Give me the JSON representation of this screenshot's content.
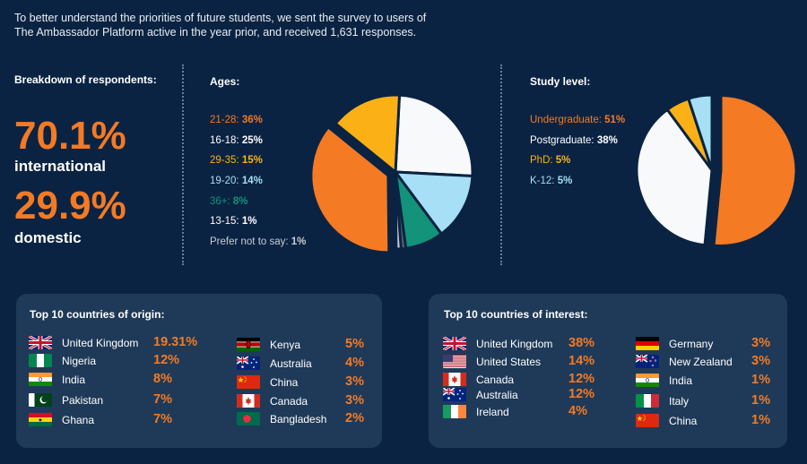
{
  "intro": {
    "line1": "To better understand the priorities of future students, we sent the survey to users of",
    "line2": "The Ambassador Platform active in the year prior, and received 1,631 responses."
  },
  "breakdown": {
    "title": "Breakdown of respondents:",
    "international_value": "70.1%",
    "international_label": "international",
    "domestic_value": "29.9%",
    "domestic_label": "domestic"
  },
  "colors": {
    "background": "#0b2342",
    "panel": "#1f3a58",
    "accent_orange": "#f47a24"
  },
  "chart_data": [
    {
      "type": "pie",
      "title": "Ages:",
      "slices": [
        {
          "label": "21-28",
          "display": "21-28: ",
          "value_text": "36%",
          "value": 36,
          "color": "#f47a24"
        },
        {
          "label": "16-18",
          "display": "16-18: ",
          "value_text": "25%",
          "value": 25,
          "color": "#f8f9fb"
        },
        {
          "label": "29-35",
          "display": "29-35: ",
          "value_text": "15%",
          "value": 15,
          "color": "#fbb116"
        },
        {
          "label": "19-20",
          "display": "19-20: ",
          "value_text": "14%",
          "value": 14,
          "color": "#a6dff6"
        },
        {
          "label": "36+",
          "display": "36+: ",
          "value_text": "8%",
          "value": 8,
          "color": "#13937a"
        },
        {
          "label": "13-15",
          "display": "13-15: ",
          "value_text": "1%",
          "value": 1,
          "color": "#c9ccd2"
        },
        {
          "label": "Prefer not to say",
          "display": "Prefer not to say: ",
          "value_text": "1%",
          "value": 1,
          "color": "#5a6472"
        }
      ],
      "pie_order": [
        "16-18",
        "19-20",
        "36+",
        "Prefer not to say",
        "13-15",
        "21-28",
        "29-35"
      ],
      "exploded": "21-28"
    },
    {
      "type": "pie",
      "title": "Study level:",
      "slices": [
        {
          "label": "Undergraduate",
          "display": "Undergraduate: ",
          "value_text": "51%",
          "value": 51,
          "color": "#f47a24"
        },
        {
          "label": "Postgraduate",
          "display": "Postgraduate: ",
          "value_text": "38%",
          "value": 38,
          "color": "#f8f9fb"
        },
        {
          "label": "PhD",
          "display": "PhD: ",
          "value_text": "5%",
          "value": 5,
          "color": "#fbb116"
        },
        {
          "label": "K-12",
          "display": "K-12: ",
          "value_text": "5%",
          "value": 5,
          "color": "#a6dff6"
        }
      ],
      "pie_order": [
        "Undergraduate",
        "Postgraduate",
        "PhD",
        "K-12"
      ],
      "exploded": "Undergraduate"
    }
  ],
  "origin": {
    "title": "Top 10 countries of origin:",
    "col1": [
      {
        "name": "United Kingdom",
        "value": "19.31%",
        "flag": "uk-flag-icon"
      },
      {
        "name": "Nigeria",
        "value": "12%",
        "flag": "nigeria-flag-icon"
      },
      {
        "name": "India",
        "value": "8%",
        "flag": "india-flag-icon"
      },
      {
        "name": "Pakistan",
        "value": "7%",
        "flag": "pakistan-flag-icon"
      },
      {
        "name": "Ghana",
        "value": "7%",
        "flag": "ghana-flag-icon"
      }
    ],
    "col2": [
      {
        "name": "Kenya",
        "value": "5%",
        "flag": "kenya-flag-icon"
      },
      {
        "name": "Australia",
        "value": "4%",
        "flag": "australia-flag-icon"
      },
      {
        "name": "China",
        "value": "3%",
        "flag": "china-flag-icon"
      },
      {
        "name": "Canada",
        "value": "3%",
        "flag": "canada-flag-icon"
      },
      {
        "name": "Bangladesh",
        "value": "2%",
        "flag": "bangladesh-flag-icon"
      }
    ]
  },
  "interest": {
    "title": "Top 10 countries of interest:",
    "col1": [
      {
        "name": "United Kingdom",
        "value": "38%",
        "flag": "uk-flag-icon"
      },
      {
        "name": "United States",
        "value": "14%",
        "flag": "usa-flag-icon"
      },
      {
        "name": "Canada",
        "value": "12%",
        "flag": "canada-flag-icon"
      },
      {
        "name": "Australia",
        "value": "12%",
        "flag": "australia-flag-icon"
      },
      {
        "name": "Ireland",
        "value": "4%",
        "flag": "ireland-flag-icon"
      }
    ],
    "col2": [
      {
        "name": "Germany",
        "value": "3%",
        "flag": "germany-flag-icon"
      },
      {
        "name": "New Zealand",
        "value": "3%",
        "flag": "new-zealand-flag-icon"
      },
      {
        "name": "India",
        "value": "1%",
        "flag": "india-flag-icon"
      },
      {
        "name": "Italy",
        "value": "1%",
        "flag": "italy-flag-icon"
      },
      {
        "name": "China",
        "value": "1%",
        "flag": "china-flag-icon"
      }
    ]
  }
}
